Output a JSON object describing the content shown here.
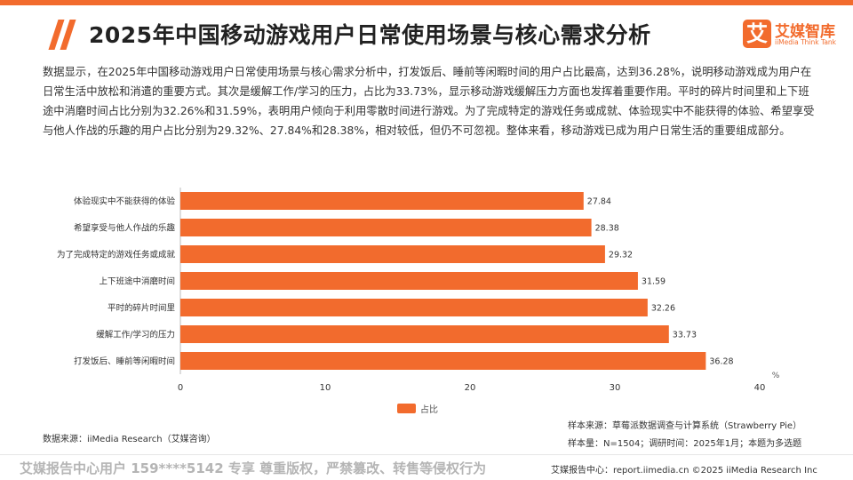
{
  "header": {
    "title": "2025年中国移动游戏用户日常使用场景与核心需求分析",
    "logo_mark": "艾",
    "logo_name": "艾媒智库",
    "logo_sub": "iiMedia Think Tank"
  },
  "description": "数据显示，在2025年中国移动游戏用户日常使用场景与核心需求分析中，打发饭后、睡前等闲暇时间的用户占比最高，达到36.28%，说明移动游戏成为用户在日常生活中放松和消遣的重要方式。其次是缓解工作/学习的压力，占比为33.73%，显示移动游戏缓解压力方面也发挥着重要作用。平时的碎片时间里和上下班途中消磨时间占比分别为32.26%和31.59%，表明用户倾向于利用零散时间进行游戏。为了完成特定的游戏任务或成就、体验现实中不能获得的体验、希望享受与他人作战的乐趣的用户占比分别为29.32%、27.84%和28.38%，相对较低，但仍不可忽视。整体来看，移动游戏已成为用户日常生活的重要组成部分。",
  "chart_data": {
    "type": "bar",
    "orientation": "horizontal",
    "categories": [
      "体验现实中不能获得的体验",
      "希望享受与他人作战的乐趣",
      "为了完成特定的游戏任务或成就",
      "上下班途中消磨时间",
      "平时的碎片时间里",
      "缓解工作/学习的压力",
      "打发饭后、睡前等闲暇时间"
    ],
    "series": [
      {
        "name": "占比",
        "values": [
          27.84,
          28.38,
          29.32,
          31.59,
          32.26,
          33.73,
          36.28
        ]
      }
    ],
    "xlim": [
      0,
      40
    ],
    "xticks": [
      0,
      10,
      20,
      30,
      40
    ],
    "unit_label": "%",
    "title": "",
    "xlabel": "",
    "ylabel": "",
    "legend_position": "bottom",
    "grid": false,
    "bar_color": "#f26b2d"
  },
  "sources": {
    "left": "数据来源：iiMedia Research（艾媒咨询）",
    "right_line1": "样本来源：草莓派数据调查与计算系统（Strawberry Pie）",
    "right_line2": "样本量：N=1504；调研时间：2025年1月；本题为多选题"
  },
  "footer": {
    "left": "艾媒报告中心用户 159****5142 专享 尊重版权，严禁篡改、转售等侵权行为",
    "right": "艾媒报告中心：report.iimedia.cn  ©2025 iiMedia Research Inc"
  },
  "colors": {
    "accent": "#f26b2d",
    "watermark": "#b5b5b5"
  }
}
